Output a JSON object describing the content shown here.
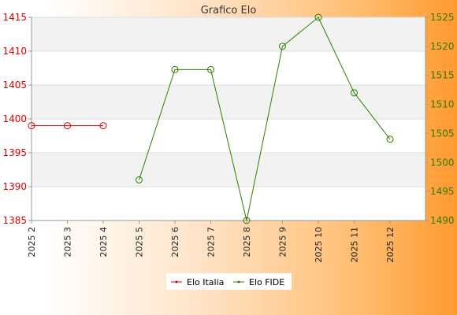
{
  "chart_data": {
    "type": "line",
    "title": "Grafico Elo",
    "categories": [
      "2025 2",
      "2025 3",
      "2025 4",
      "2025 5",
      "2025 6",
      "2025 7",
      "2025 8",
      "2025 9",
      "2025 10",
      "2025 11",
      "2025 12"
    ],
    "y_left": {
      "lim": [
        1385,
        1415
      ],
      "ticks": [
        1385,
        1390,
        1395,
        1400,
        1405,
        1410,
        1415
      ],
      "color": "#dd0000"
    },
    "y_right": {
      "lim": [
        1490,
        1525
      ],
      "ticks": [
        1490,
        1495,
        1500,
        1505,
        1510,
        1515,
        1520,
        1525
      ],
      "color": "#2e7d00"
    },
    "grid": true,
    "legend_position": "bottom-center",
    "series": [
      {
        "name": "Elo Italia",
        "axis": "left",
        "color": "#dd0000",
        "values": [
          1399,
          1399,
          1399,
          null,
          null,
          null,
          null,
          null,
          null,
          null,
          null
        ]
      },
      {
        "name": "Elo FIDE",
        "axis": "right",
        "color": "#2e7d00",
        "values": [
          null,
          null,
          null,
          1497,
          1516,
          1516,
          1490,
          1520,
          1525,
          1512,
          1504
        ]
      }
    ]
  }
}
